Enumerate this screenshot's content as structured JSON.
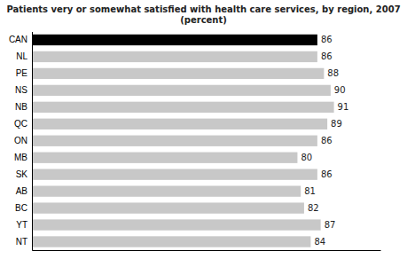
{
  "chart_data": {
    "type": "bar",
    "orientation": "horizontal",
    "title": "Patients very or somewhat satisfied with health care services, by region, 2007\n(percent)",
    "categories": [
      "CAN",
      "NL",
      "PE",
      "NS",
      "NB",
      "QC",
      "ON",
      "MB",
      "SK",
      "AB",
      "BC",
      "YT",
      "NT"
    ],
    "values": [
      86,
      86,
      88,
      90,
      91,
      89,
      86,
      80,
      86,
      81,
      82,
      87,
      84
    ],
    "colors": [
      "#000000",
      "#c8c8c8",
      "#c8c8c8",
      "#c8c8c8",
      "#c8c8c8",
      "#c8c8c8",
      "#c8c8c8",
      "#c8c8c8",
      "#c8c8c8",
      "#c8c8c8",
      "#c8c8c8",
      "#c8c8c8",
      "#c8c8c8"
    ],
    "xlim": [
      0,
      105
    ],
    "data_labels": true,
    "tick_labels": "y",
    "grid": false
  }
}
